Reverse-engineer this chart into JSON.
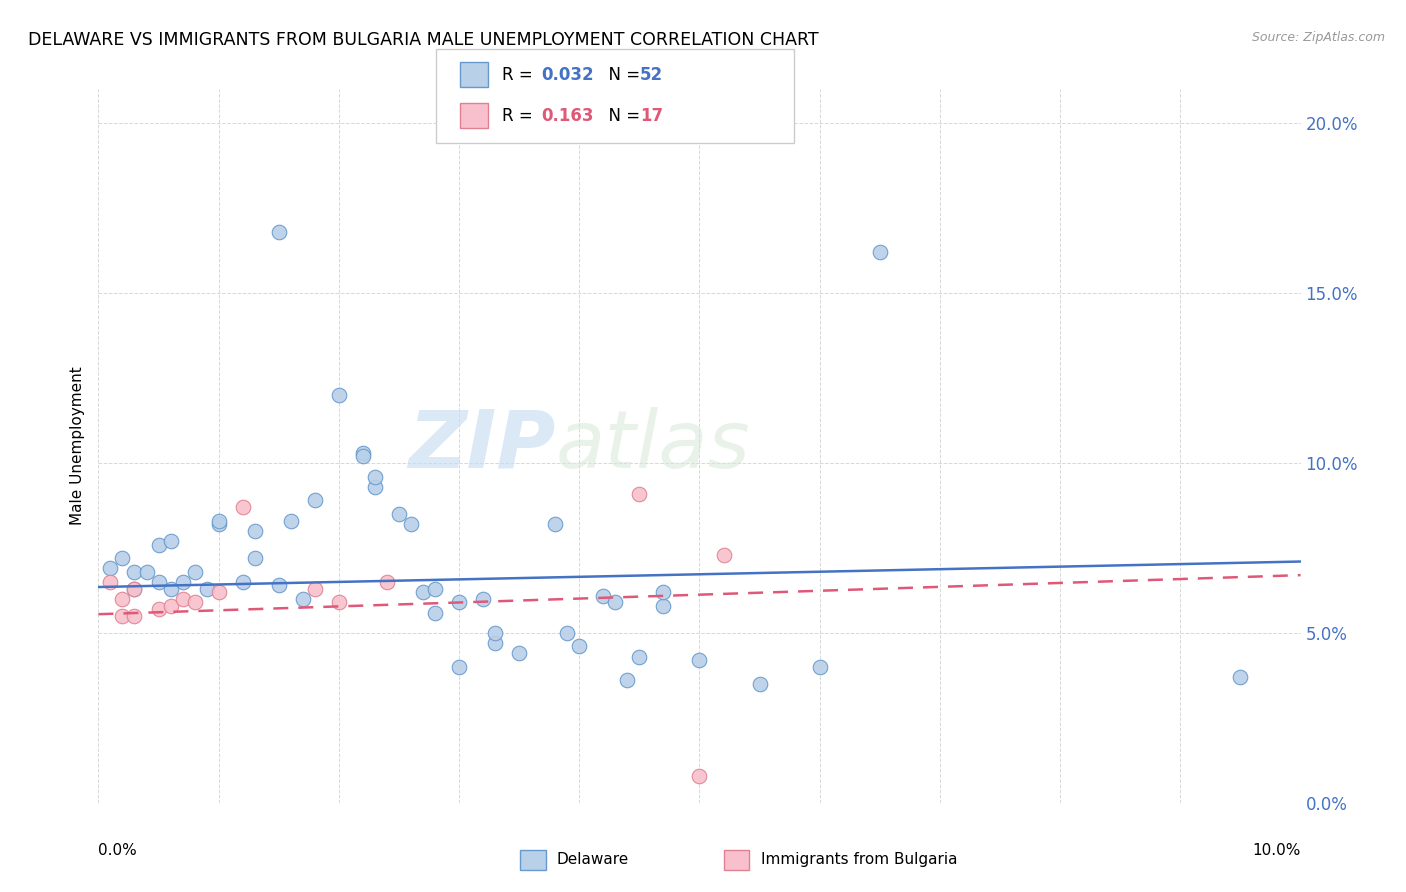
{
  "title": "DELAWARE VS IMMIGRANTS FROM BULGARIA MALE UNEMPLOYMENT CORRELATION CHART",
  "source": "Source: ZipAtlas.com",
  "ylabel": "Male Unemployment",
  "watermark_zip": "ZIP",
  "watermark_atlas": "atlas",
  "delaware_color": "#b8d0e8",
  "delaware_edge_color": "#6699cc",
  "delaware_line_color": "#4472c4",
  "bulgaria_color": "#f8c0cc",
  "bulgaria_edge_color": "#e08090",
  "bulgaria_line_color": "#e05878",
  "delaware_scatter": [
    [
      0.001,
      0.069
    ],
    [
      0.002,
      0.072
    ],
    [
      0.003,
      0.068
    ],
    [
      0.003,
      0.063
    ],
    [
      0.004,
      0.068
    ],
    [
      0.005,
      0.076
    ],
    [
      0.005,
      0.065
    ],
    [
      0.006,
      0.077
    ],
    [
      0.006,
      0.063
    ],
    [
      0.007,
      0.065
    ],
    [
      0.008,
      0.068
    ],
    [
      0.009,
      0.063
    ],
    [
      0.01,
      0.082
    ],
    [
      0.01,
      0.083
    ],
    [
      0.012,
      0.065
    ],
    [
      0.013,
      0.08
    ],
    [
      0.013,
      0.072
    ],
    [
      0.015,
      0.064
    ],
    [
      0.016,
      0.083
    ],
    [
      0.017,
      0.06
    ],
    [
      0.018,
      0.089
    ],
    [
      0.02,
      0.12
    ],
    [
      0.022,
      0.103
    ],
    [
      0.022,
      0.102
    ],
    [
      0.023,
      0.093
    ],
    [
      0.023,
      0.096
    ],
    [
      0.025,
      0.085
    ],
    [
      0.026,
      0.082
    ],
    [
      0.027,
      0.062
    ],
    [
      0.028,
      0.056
    ],
    [
      0.028,
      0.063
    ],
    [
      0.03,
      0.059
    ],
    [
      0.03,
      0.04
    ],
    [
      0.032,
      0.06
    ],
    [
      0.033,
      0.047
    ],
    [
      0.033,
      0.05
    ],
    [
      0.035,
      0.044
    ],
    [
      0.038,
      0.082
    ],
    [
      0.039,
      0.05
    ],
    [
      0.04,
      0.046
    ],
    [
      0.042,
      0.061
    ],
    [
      0.043,
      0.059
    ],
    [
      0.044,
      0.036
    ],
    [
      0.045,
      0.043
    ],
    [
      0.047,
      0.058
    ],
    [
      0.047,
      0.062
    ],
    [
      0.05,
      0.042
    ],
    [
      0.055,
      0.035
    ],
    [
      0.06,
      0.04
    ],
    [
      0.065,
      0.162
    ],
    [
      0.015,
      0.168
    ],
    [
      0.095,
      0.037
    ]
  ],
  "bulgaria_scatter": [
    [
      0.001,
      0.065
    ],
    [
      0.002,
      0.06
    ],
    [
      0.002,
      0.055
    ],
    [
      0.003,
      0.063
    ],
    [
      0.003,
      0.055
    ],
    [
      0.005,
      0.057
    ],
    [
      0.006,
      0.058
    ],
    [
      0.007,
      0.06
    ],
    [
      0.008,
      0.059
    ],
    [
      0.01,
      0.062
    ],
    [
      0.012,
      0.087
    ],
    [
      0.018,
      0.063
    ],
    [
      0.02,
      0.059
    ],
    [
      0.024,
      0.065
    ],
    [
      0.045,
      0.091
    ],
    [
      0.052,
      0.073
    ],
    [
      0.05,
      0.008
    ]
  ],
  "xlim": [
    0.0,
    0.1
  ],
  "ylim": [
    0.0,
    0.21
  ],
  "yticks": [
    0.0,
    0.05,
    0.1,
    0.15,
    0.2
  ],
  "ytick_labels": [
    "0.0%",
    "5.0%",
    "10.0%",
    "15.0%",
    "20.0%"
  ],
  "xticks": [
    0.0,
    0.01,
    0.02,
    0.03,
    0.04,
    0.05,
    0.06,
    0.07,
    0.08,
    0.09,
    0.1
  ],
  "delaware_trend_x": [
    0.0,
    0.1
  ],
  "delaware_trend_y": [
    0.0635,
    0.071
  ],
  "bulgaria_trend_x": [
    0.0,
    0.1
  ],
  "bulgaria_trend_y": [
    0.0555,
    0.067
  ],
  "legend_r1": "R = ",
  "legend_v1": "0.032",
  "legend_n1": "N = 52",
  "legend_r2": "R = ",
  "legend_v2": "0.163",
  "legend_n2": "N = 17"
}
